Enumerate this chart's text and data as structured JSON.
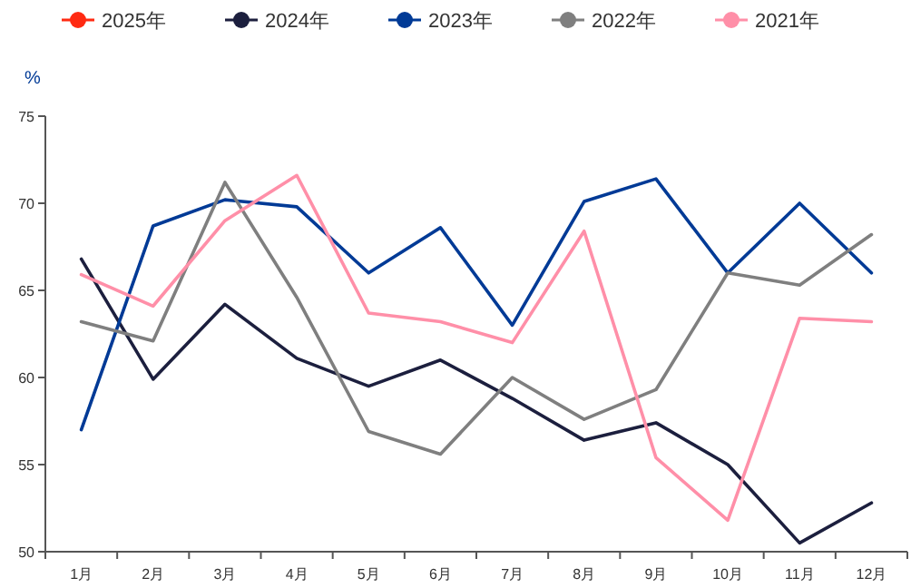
{
  "chart_data": {
    "type": "line",
    "ylabel": "%",
    "categories": [
      "1月",
      "2月",
      "3月",
      "4月",
      "5月",
      "6月",
      "7月",
      "8月",
      "9月",
      "10月",
      "11月",
      "12月"
    ],
    "ylim": [
      50,
      75
    ],
    "yticks": [
      50,
      55,
      60,
      65,
      70,
      75
    ],
    "grid": false,
    "legend": "top",
    "marker": "none",
    "line_style": "solid",
    "series": [
      {
        "name": "2025年",
        "color": "#ff2a12",
        "values": [
          null,
          null,
          null,
          null,
          null,
          null,
          null,
          null,
          null,
          null,
          null,
          null
        ]
      },
      {
        "name": "2024年",
        "color": "#1c1f3e",
        "values": [
          66.8,
          59.9,
          64.2,
          61.1,
          59.5,
          61.0,
          58.8,
          56.4,
          57.4,
          55.0,
          50.5,
          52.8
        ]
      },
      {
        "name": "2023年",
        "color": "#003a96",
        "values": [
          57.0,
          68.7,
          70.2,
          69.8,
          66.0,
          68.6,
          63.0,
          70.1,
          71.4,
          66.0,
          70.0,
          66.0
        ]
      },
      {
        "name": "2022年",
        "color": "#7f7f7f",
        "values": [
          63.2,
          62.1,
          71.2,
          64.6,
          56.9,
          55.6,
          60.0,
          57.6,
          59.3,
          66.0,
          65.3,
          68.2
        ]
      },
      {
        "name": "2021年",
        "color": "#ff8fa8",
        "values": [
          65.9,
          64.1,
          69.0,
          71.6,
          63.7,
          63.2,
          62.0,
          68.4,
          55.4,
          51.8,
          63.4,
          63.2
        ]
      }
    ]
  }
}
